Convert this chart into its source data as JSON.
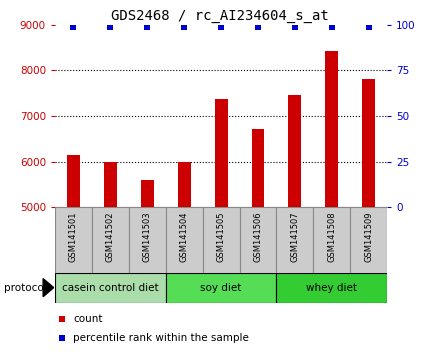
{
  "title": "GDS2468 / rc_AI234604_s_at",
  "samples": [
    "GSM141501",
    "GSM141502",
    "GSM141503",
    "GSM141504",
    "GSM141505",
    "GSM141506",
    "GSM141507",
    "GSM141508",
    "GSM141509"
  ],
  "counts": [
    6150,
    6000,
    5600,
    5980,
    7380,
    6720,
    7450,
    8430,
    7800
  ],
  "ylim_left": [
    5000,
    9000
  ],
  "ylim_right": [
    0,
    100
  ],
  "yticks_left": [
    5000,
    6000,
    7000,
    8000,
    9000
  ],
  "yticks_right": [
    0,
    25,
    50,
    75,
    100
  ],
  "bar_color": "#cc0000",
  "dot_color": "#0000cc",
  "left_tick_color": "#cc0000",
  "right_tick_color": "#0000cc",
  "title_fontsize": 10,
  "groups": [
    {
      "label": "casein control diet",
      "start": 0,
      "end": 3,
      "color": "#aaddaa"
    },
    {
      "label": "soy diet",
      "start": 3,
      "end": 6,
      "color": "#55dd55"
    },
    {
      "label": "whey diet",
      "start": 6,
      "end": 9,
      "color": "#33cc33"
    }
  ],
  "legend_count_label": "count",
  "legend_percentile_label": "percentile rank within the sample",
  "protocol_label": "protocol",
  "bg_color": "#ffffff",
  "plot_bg_color": "#ffffff",
  "label_box_color": "#cccccc",
  "label_box_edge": "#888888",
  "bar_width": 0.35,
  "percentile_value": 99,
  "percentile_marker_size": 4
}
